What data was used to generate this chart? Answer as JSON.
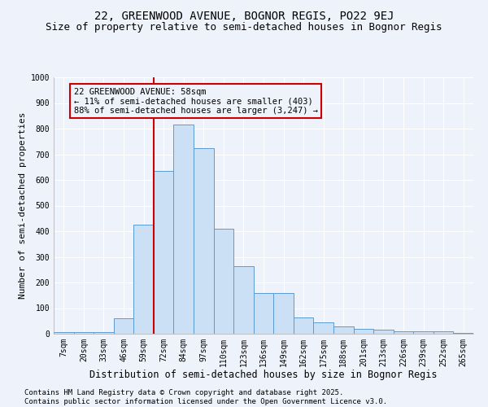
{
  "title1": "22, GREENWOOD AVENUE, BOGNOR REGIS, PO22 9EJ",
  "title2": "Size of property relative to semi-detached houses in Bognor Regis",
  "xlabel": "Distribution of semi-detached houses by size in Bognor Regis",
  "ylabel": "Number of semi-detached properties",
  "categories": [
    "7sqm",
    "20sqm",
    "33sqm",
    "46sqm",
    "59sqm",
    "72sqm",
    "84sqm",
    "97sqm",
    "110sqm",
    "123sqm",
    "136sqm",
    "149sqm",
    "162sqm",
    "175sqm",
    "188sqm",
    "201sqm",
    "213sqm",
    "226sqm",
    "239sqm",
    "252sqm",
    "265sqm"
  ],
  "values": [
    5,
    5,
    5,
    60,
    425,
    635,
    815,
    725,
    410,
    265,
    160,
    160,
    65,
    45,
    30,
    20,
    15,
    10,
    10,
    8,
    3
  ],
  "bar_color": "#cce0f5",
  "bar_edge_color": "#5b9bd5",
  "vline_x_idx": 4.5,
  "vline_color": "#cc0000",
  "annotation_text": "22 GREENWOOD AVENUE: 58sqm\n← 11% of semi-detached houses are smaller (403)\n88% of semi-detached houses are larger (3,247) →",
  "annotation_box_color": "#cc0000",
  "ylim": [
    0,
    1000
  ],
  "yticks": [
    0,
    100,
    200,
    300,
    400,
    500,
    600,
    700,
    800,
    900,
    1000
  ],
  "background_color": "#eef2fb",
  "grid_color": "#ffffff",
  "footer1": "Contains HM Land Registry data © Crown copyright and database right 2025.",
  "footer2": "Contains public sector information licensed under the Open Government Licence v3.0.",
  "title1_fontsize": 10,
  "title2_fontsize": 9,
  "xlabel_fontsize": 8.5,
  "ylabel_fontsize": 8,
  "tick_fontsize": 7,
  "annotation_fontsize": 7.5,
  "footer_fontsize": 6.5
}
